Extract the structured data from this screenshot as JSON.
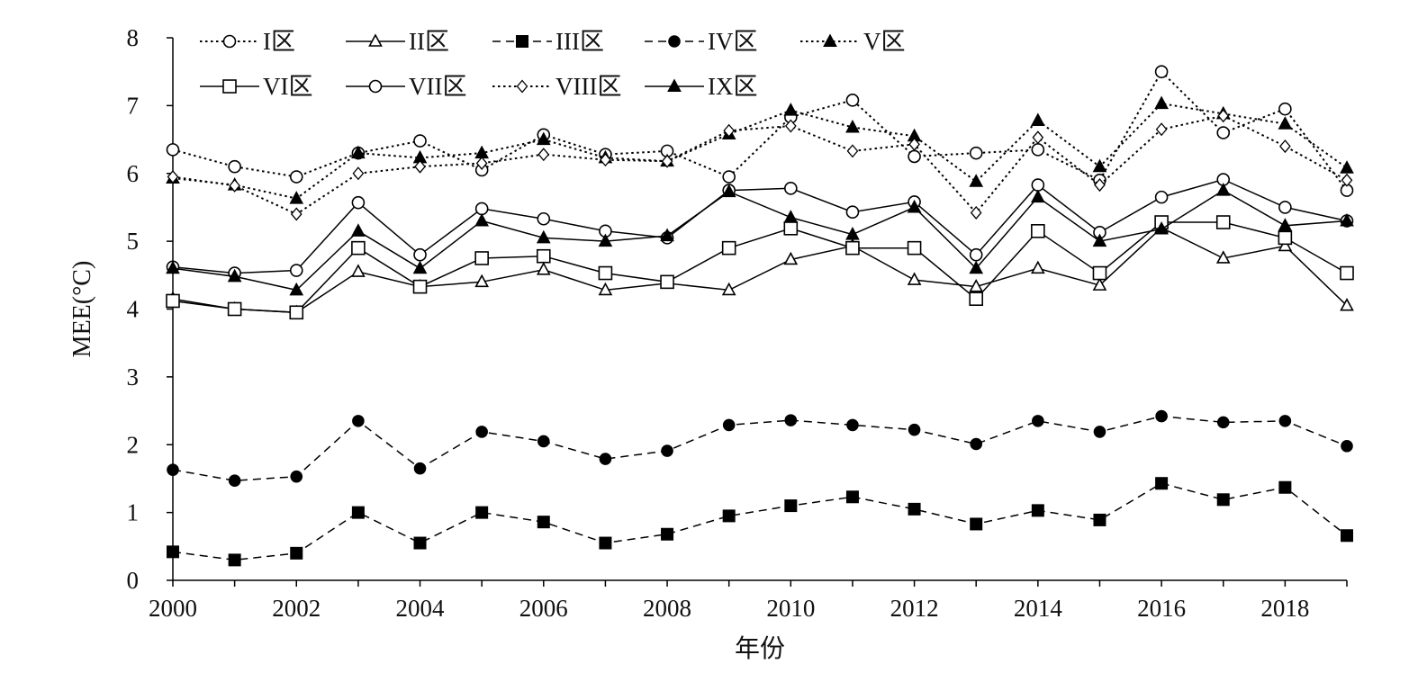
{
  "chart_data": {
    "type": "line",
    "title": "",
    "xlabel": "年份",
    "ylabel": "MEE(°C)",
    "xlim": [
      2000,
      2019
    ],
    "ylim": [
      0,
      8
    ],
    "x_ticks": [
      "2000",
      "2002",
      "2004",
      "2006",
      "2008",
      "2010",
      "2012",
      "2014",
      "2016",
      "2018"
    ],
    "y_ticks": [
      "0",
      "1",
      "2",
      "3",
      "4",
      "5",
      "6",
      "7",
      "8"
    ],
    "grid": false,
    "legend_position": "top-left",
    "x": [
      2000,
      2001,
      2002,
      2003,
      2004,
      2005,
      2006,
      2007,
      2008,
      2009,
      2010,
      2011,
      2012,
      2013,
      2014,
      2015,
      2016,
      2017,
      2018,
      2019
    ],
    "series": [
      {
        "name": "I区",
        "line": "dotted",
        "marker": "circle-open",
        "values": [
          6.35,
          6.1,
          5.95,
          6.3,
          6.48,
          6.05,
          6.57,
          6.28,
          6.33,
          5.95,
          6.83,
          7.08,
          6.25,
          6.3,
          6.35,
          5.9,
          7.5,
          6.6,
          6.95,
          5.75
        ]
      },
      {
        "name": "II区",
        "line": "solid",
        "marker": "triangle-open",
        "values": [
          4.15,
          4.0,
          3.95,
          4.55,
          4.33,
          4.4,
          4.58,
          4.28,
          4.38,
          4.28,
          4.73,
          4.93,
          4.43,
          4.33,
          4.6,
          4.35,
          5.2,
          4.75,
          4.93,
          4.05
        ]
      },
      {
        "name": "III区",
        "line": "dashed",
        "marker": "square-filled",
        "values": [
          0.42,
          0.3,
          0.4,
          1.0,
          0.55,
          1.0,
          0.86,
          0.55,
          0.68,
          0.95,
          1.1,
          1.23,
          1.05,
          0.83,
          1.03,
          0.89,
          1.43,
          1.19,
          1.37,
          0.66
        ]
      },
      {
        "name": "IV区",
        "line": "dashed",
        "marker": "circle-filled",
        "values": [
          1.63,
          1.47,
          1.53,
          2.35,
          1.65,
          2.19,
          2.05,
          1.79,
          1.91,
          2.29,
          2.36,
          2.29,
          2.22,
          2.01,
          2.35,
          2.19,
          2.42,
          2.33,
          2.35,
          1.98
        ]
      },
      {
        "name": "V区",
        "line": "dotted",
        "marker": "triangle-filled",
        "values": [
          5.93,
          5.83,
          5.63,
          6.3,
          6.23,
          6.3,
          6.5,
          6.23,
          6.18,
          6.58,
          6.93,
          6.68,
          6.55,
          5.88,
          6.78,
          6.1,
          7.03,
          6.88,
          6.73,
          6.08
        ]
      },
      {
        "name": "VI区",
        "line": "solid",
        "marker": "square-open",
        "values": [
          4.12,
          4.0,
          3.95,
          4.9,
          4.33,
          4.75,
          4.78,
          4.53,
          4.4,
          4.9,
          5.19,
          4.9,
          4.9,
          4.15,
          5.15,
          4.53,
          5.28,
          5.28,
          5.05,
          4.53
        ]
      },
      {
        "name": "VII区",
        "line": "solid",
        "marker": "circle-open",
        "values": [
          4.62,
          4.53,
          4.57,
          5.57,
          4.8,
          5.48,
          5.33,
          5.15,
          5.05,
          5.75,
          5.78,
          5.43,
          5.58,
          4.8,
          5.83,
          5.13,
          5.65,
          5.91,
          5.5,
          5.3
        ]
      },
      {
        "name": "VIII区",
        "line": "dotted",
        "marker": "diamond-open",
        "values": [
          5.95,
          5.82,
          5.4,
          6.0,
          6.1,
          6.15,
          6.28,
          6.2,
          6.18,
          6.63,
          6.7,
          6.33,
          6.43,
          5.42,
          6.53,
          5.83,
          6.65,
          6.85,
          6.4,
          5.9
        ]
      },
      {
        "name": "IX区",
        "line": "solid",
        "marker": "triangle-filled",
        "values": [
          4.6,
          4.48,
          4.28,
          5.15,
          4.6,
          5.3,
          5.05,
          5.0,
          5.08,
          5.73,
          5.35,
          5.1,
          5.5,
          4.6,
          5.65,
          5.0,
          5.18,
          5.75,
          5.23,
          5.3
        ]
      }
    ]
  }
}
